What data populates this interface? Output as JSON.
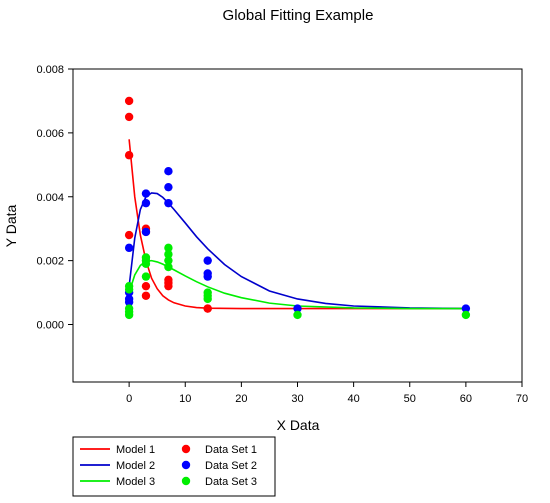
{
  "chart_data": {
    "type": "scatter",
    "title": "Global Fitting Example",
    "xlabel": "X Data",
    "ylabel": "Y Data",
    "xlim": [
      -10,
      70
    ],
    "ylim": [
      -0.0018,
      0.008
    ],
    "xticks": [
      {
        "value": 0,
        "label": "0"
      },
      {
        "value": 10,
        "label": "10"
      },
      {
        "value": 20,
        "label": "20"
      },
      {
        "value": 30,
        "label": "30"
      },
      {
        "value": 40,
        "label": "40"
      },
      {
        "value": 50,
        "label": "50"
      },
      {
        "value": 60,
        "label": "60"
      },
      {
        "value": 70,
        "label": "70"
      }
    ],
    "yticks": [
      {
        "value": 0,
        "label": "0.000"
      },
      {
        "value": 0.002,
        "label": "0.002"
      },
      {
        "value": 0.004,
        "label": "0.004"
      },
      {
        "value": 0.006,
        "label": "0.006"
      },
      {
        "value": 0.008,
        "label": "0.008"
      }
    ],
    "grid": false,
    "legend_position": "bottom-left",
    "series": [
      {
        "name": "Data Set 1",
        "kind": "points",
        "color": "#ff0000",
        "points": [
          [
            0,
            0.007
          ],
          [
            0,
            0.0065
          ],
          [
            0,
            0.0053
          ],
          [
            0,
            0.0028
          ],
          [
            3,
            0.003
          ],
          [
            3,
            0.0029
          ],
          [
            3,
            0.0012
          ],
          [
            3,
            0.0009
          ],
          [
            7,
            0.0014
          ],
          [
            7,
            0.0013
          ],
          [
            7,
            0.0012
          ],
          [
            14,
            0.0005
          ],
          [
            14,
            0.0005
          ]
        ]
      },
      {
        "name": "Data Set 2",
        "kind": "points",
        "color": "#0000ff",
        "points": [
          [
            0,
            0.0024
          ],
          [
            0,
            0.001
          ],
          [
            0,
            0.0008
          ],
          [
            0,
            0.0007
          ],
          [
            3,
            0.0041
          ],
          [
            3,
            0.0038
          ],
          [
            3,
            0.0029
          ],
          [
            7,
            0.0048
          ],
          [
            7,
            0.0043
          ],
          [
            7,
            0.0038
          ],
          [
            14,
            0.002
          ],
          [
            14,
            0.0016
          ],
          [
            14,
            0.0015
          ],
          [
            30,
            0.0005
          ],
          [
            60,
            0.0005
          ]
        ]
      },
      {
        "name": "Data Set 3",
        "kind": "points",
        "color": "#00ee00",
        "points": [
          [
            0,
            0.0012
          ],
          [
            0,
            0.0011
          ],
          [
            0,
            0.0005
          ],
          [
            0,
            0.0004
          ],
          [
            0,
            0.0003
          ],
          [
            3,
            0.0021
          ],
          [
            3,
            0.002
          ],
          [
            3,
            0.0019
          ],
          [
            3,
            0.0015
          ],
          [
            7,
            0.0024
          ],
          [
            7,
            0.0022
          ],
          [
            7,
            0.002
          ],
          [
            7,
            0.0018
          ],
          [
            14,
            0.001
          ],
          [
            14,
            0.0009
          ],
          [
            14,
            0.0008
          ],
          [
            30,
            0.0003
          ],
          [
            60,
            0.0003
          ]
        ]
      },
      {
        "name": "Model 1",
        "kind": "line",
        "color": "#ff0000",
        "points": [
          [
            0,
            0.0058
          ],
          [
            1,
            0.004
          ],
          [
            2,
            0.0028
          ],
          [
            3,
            0.002
          ],
          [
            4,
            0.00145
          ],
          [
            5,
            0.00112
          ],
          [
            6,
            0.0009
          ],
          [
            7,
            0.00077
          ],
          [
            8,
            0.00068
          ],
          [
            10,
            0.00058
          ],
          [
            12,
            0.00053
          ],
          [
            14,
            0.00051
          ],
          [
            20,
            0.0005
          ],
          [
            30,
            0.0005
          ],
          [
            40,
            0.0005
          ],
          [
            50,
            0.0005
          ],
          [
            60,
            0.0005
          ]
        ]
      },
      {
        "name": "Model 2",
        "kind": "line",
        "color": "#0000cc",
        "points": [
          [
            0,
            0.0012
          ],
          [
            1,
            0.0027
          ],
          [
            2,
            0.0036
          ],
          [
            3,
            0.004
          ],
          [
            4,
            0.00412
          ],
          [
            5,
            0.0041
          ],
          [
            6,
            0.00398
          ],
          [
            7,
            0.0038
          ],
          [
            8,
            0.0036
          ],
          [
            10,
            0.00318
          ],
          [
            12,
            0.00275
          ],
          [
            14,
            0.00237
          ],
          [
            17,
            0.00188
          ],
          [
            20,
            0.0015
          ],
          [
            25,
            0.00105
          ],
          [
            30,
            0.0008
          ],
          [
            35,
            0.00066
          ],
          [
            40,
            0.00058
          ],
          [
            50,
            0.00052
          ],
          [
            60,
            0.0005
          ]
        ]
      },
      {
        "name": "Model 3",
        "kind": "line",
        "color": "#00ee00",
        "points": [
          [
            0,
            0.001
          ],
          [
            1,
            0.00155
          ],
          [
            2,
            0.00185
          ],
          [
            3,
            0.00198
          ],
          [
            4,
            0.002
          ],
          [
            5,
            0.00196
          ],
          [
            6,
            0.00189
          ],
          [
            7,
            0.0018
          ],
          [
            8,
            0.00171
          ],
          [
            10,
            0.00152
          ],
          [
            12,
            0.00134
          ],
          [
            14,
            0.00118
          ],
          [
            17,
            0.00098
          ],
          [
            20,
            0.00084
          ],
          [
            25,
            0.00067
          ],
          [
            30,
            0.00058
          ],
          [
            40,
            0.00052
          ],
          [
            50,
            0.0005
          ],
          [
            60,
            0.0005
          ]
        ]
      }
    ],
    "legend": [
      {
        "label": "Model 1",
        "kind": "line",
        "color": "#ff0000"
      },
      {
        "label": "Model 2",
        "kind": "line",
        "color": "#0000cc"
      },
      {
        "label": "Model 3",
        "kind": "line",
        "color": "#00ee00"
      },
      {
        "label": "Data Set 1",
        "kind": "points",
        "color": "#ff0000"
      },
      {
        "label": "Data Set 2",
        "kind": "points",
        "color": "#0000ff"
      },
      {
        "label": "Data Set 3",
        "kind": "points",
        "color": "#00ee00"
      }
    ]
  }
}
